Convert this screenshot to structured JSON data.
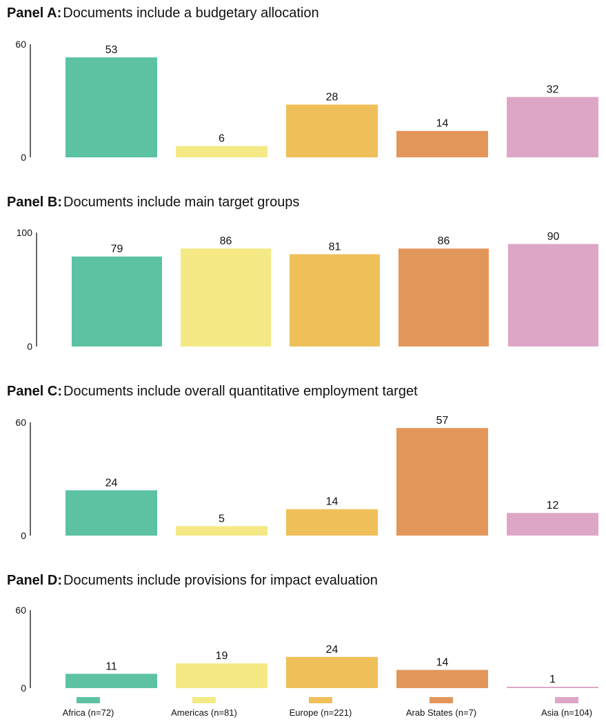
{
  "chart_data": [
    {
      "type": "bar",
      "title_lead": "Panel A:",
      "title": "Documents include a budgetary allocation",
      "categories": [
        "Africa (n=72)",
        "Americas (n=81)",
        "Europe (n=221)",
        "Arab States (n=7)",
        "Asia (n=104)"
      ],
      "values": [
        53,
        6,
        28,
        14,
        32
      ],
      "ylim": [
        0,
        60
      ],
      "yticks": [
        "0",
        "60"
      ],
      "grid": false
    },
    {
      "type": "bar",
      "title_lead": "Panel B:",
      "title": "Documents include main target groups",
      "categories": [
        "Africa (n=72)",
        "Americas (n=81)",
        "Europe (n=221)",
        "Arab States (n=7)",
        "Asia (n=104)"
      ],
      "values": [
        79,
        86,
        81,
        86,
        90
      ],
      "ylim": [
        0,
        100
      ],
      "yticks": [
        "0",
        "100"
      ],
      "grid": false
    },
    {
      "type": "bar",
      "title_lead": "Panel C:",
      "title": "Documents include overall quantitative employment target",
      "categories": [
        "Africa (n=72)",
        "Americas (n=81)",
        "Europe (n=221)",
        "Arab States (n=7)",
        "Asia (n=104)"
      ],
      "values": [
        24,
        5,
        14,
        57,
        12
      ],
      "ylim": [
        0,
        60
      ],
      "yticks": [
        "0",
        "60"
      ],
      "grid": false
    },
    {
      "type": "bar",
      "title_lead": "Panel D:",
      "title": "Documents include provisions for impact evaluation",
      "categories": [
        "Africa (n=72)",
        "Americas (n=81)",
        "Europe (n=221)",
        "Arab States (n=7)",
        "Asia (n=104)"
      ],
      "values": [
        11,
        19,
        24,
        14,
        1
      ],
      "ylim": [
        0,
        60
      ],
      "yticks": [
        "0",
        "60"
      ],
      "grid": false
    }
  ],
  "legend": {
    "placement": "bottom",
    "items": [
      {
        "label": "Africa (n=72)",
        "color": "#5cc2a3"
      },
      {
        "label": "Americas (n=81)",
        "color": "#f4e985"
      },
      {
        "label": "Europe (n=221)",
        "color": "#efc05a"
      },
      {
        "label": "Arab States (n=7)",
        "color": "#e3965a"
      },
      {
        "label": "Asia (n=104)",
        "color": "#dea6c6"
      }
    ]
  }
}
